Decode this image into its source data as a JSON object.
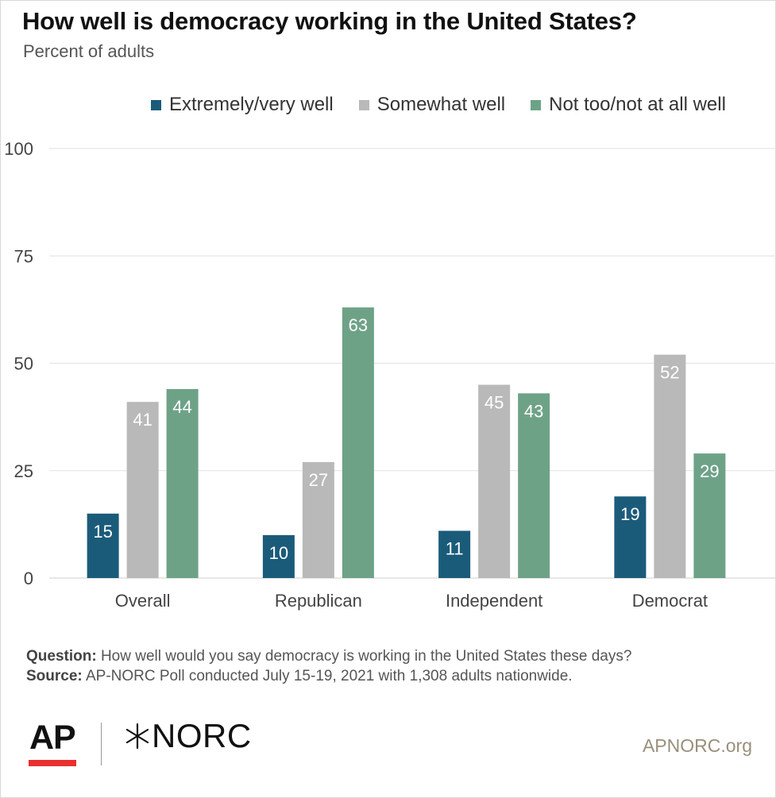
{
  "header": {
    "title": "How well is democracy working in the United States?",
    "subtitle": "Percent of adults"
  },
  "chart_data": {
    "type": "bar",
    "categories": [
      "Overall",
      "Republican",
      "Independent",
      "Democrat"
    ],
    "series": [
      {
        "name": "Extremely/very well",
        "color": "#1b5b7a",
        "values": [
          15,
          10,
          11,
          19
        ]
      },
      {
        "name": "Somewhat well",
        "color": "#b9b9b9",
        "values": [
          41,
          27,
          45,
          52
        ]
      },
      {
        "name": "Not too/not at all well",
        "color": "#6ea287",
        "values": [
          44,
          63,
          43,
          29
        ]
      }
    ],
    "ylim": [
      0,
      100
    ],
    "yticks": [
      0,
      25,
      50,
      75,
      100
    ],
    "grid": true,
    "legend": "top-right",
    "data_labels": true
  },
  "footer": {
    "question_label": "Question:",
    "question_text": " How well would you say democracy is working in the United States these days?",
    "source_label": "Source:",
    "source_text": " AP-NORC Poll  conducted July 15-19, 2021 with 1,308 adults nationwide.",
    "ap_logo": "AP",
    "norc_logo": "NORC",
    "website": "APNORC.org"
  }
}
